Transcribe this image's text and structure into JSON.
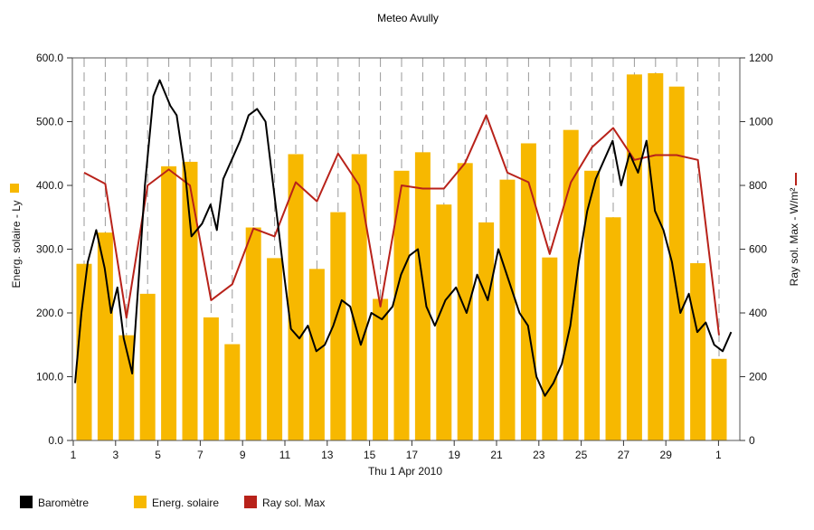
{
  "chart_data": {
    "type": "bar+line",
    "title": "Meteo  Avully",
    "xlabel": "Thu 1 Apr 2010",
    "x_tick_labels": [
      "1",
      "3",
      "5",
      "7",
      "9",
      "11",
      "13",
      "15",
      "17",
      "19",
      "21",
      "23",
      "25",
      "27",
      "29",
      "1"
    ],
    "y_left": {
      "label": "Energ. solaire - Ly",
      "lim": [
        0,
        600
      ],
      "ticks": [
        "0.0",
        "100.0",
        "200.0",
        "300.0",
        "400.0",
        "500.0",
        "600.0"
      ]
    },
    "y_right": {
      "label": "Ray sol. Max - W/m²",
      "lim": [
        0,
        1200
      ],
      "ticks": [
        "0",
        "200",
        "400",
        "600",
        "800",
        "1000",
        "1200"
      ]
    },
    "grid": "vertical-dashed",
    "days": [
      1,
      2,
      3,
      4,
      5,
      6,
      7,
      8,
      9,
      10,
      11,
      12,
      13,
      14,
      15,
      16,
      17,
      18,
      19,
      20,
      21,
      22,
      23,
      24,
      25,
      26,
      27,
      28,
      29,
      30,
      31
    ],
    "series": [
      {
        "name": "Energ. solaire",
        "type": "bar",
        "axis": "left",
        "color": "#f7b800",
        "values": [
          277,
          326,
          165,
          230,
          430,
          437,
          193,
          151,
          334,
          286,
          449,
          269,
          358,
          449,
          222,
          423,
          452,
          370,
          435,
          342,
          409,
          466,
          287,
          487,
          423,
          350,
          574,
          576,
          555,
          278,
          128
        ]
      },
      {
        "name": "Ray sol. Max",
        "type": "line",
        "axis": "right",
        "color": "#b8221a",
        "values": [
          840,
          805,
          385,
          800,
          850,
          800,
          440,
          490,
          665,
          640,
          810,
          750,
          900,
          800,
          420,
          800,
          790,
          790,
          870,
          1020,
          840,
          810,
          585,
          810,
          920,
          980,
          880,
          895,
          895,
          880,
          330
        ]
      },
      {
        "name": "Baromètre",
        "type": "line",
        "axis": "left",
        "color": "#000000",
        "x": [
          1.0,
          1.3,
          1.6,
          2.0,
          2.4,
          2.7,
          3.0,
          3.3,
          3.7,
          4.0,
          4.3,
          4.7,
          5.0,
          5.5,
          5.8,
          6.2,
          6.5,
          7.0,
          7.4,
          7.7,
          8.0,
          8.4,
          8.8,
          9.2,
          9.6,
          10.0,
          10.4,
          10.8,
          11.2,
          11.6,
          12.0,
          12.4,
          12.8,
          13.2,
          13.6,
          14.0,
          14.5,
          15.0,
          15.5,
          16.0,
          16.4,
          16.8,
          17.2,
          17.6,
          18.0,
          18.5,
          19.0,
          19.5,
          20.0,
          20.5,
          21.0,
          21.5,
          22.0,
          22.4,
          22.8,
          23.2,
          23.6,
          24.0,
          24.4,
          24.8,
          25.2,
          25.6,
          26.0,
          26.4,
          26.8,
          27.2,
          27.6,
          28.0,
          28.4,
          28.8,
          29.2,
          29.6,
          30.0,
          30.4,
          30.8,
          31.2,
          31.6,
          32.0
        ],
        "values": [
          90,
          200,
          280,
          330,
          270,
          200,
          240,
          160,
          105,
          250,
          400,
          540,
          565,
          525,
          510,
          420,
          320,
          340,
          370,
          330,
          410,
          440,
          470,
          510,
          520,
          500,
          390,
          280,
          175,
          160,
          180,
          140,
          150,
          180,
          220,
          210,
          150,
          200,
          190,
          210,
          260,
          290,
          300,
          210,
          180,
          220,
          240,
          200,
          260,
          220,
          300,
          250,
          200,
          180,
          100,
          70,
          90,
          120,
          180,
          280,
          360,
          410,
          440,
          470,
          400,
          450,
          420,
          470,
          360,
          330,
          280,
          200,
          230,
          170,
          185,
          150,
          140,
          170
        ]
      }
    ]
  },
  "legend": [
    {
      "name": "Baromètre",
      "color": "#000000"
    },
    {
      "name": "Energ. solaire",
      "color": "#f7b800"
    },
    {
      "name": "Ray sol. Max",
      "color": "#b8221a"
    }
  ]
}
